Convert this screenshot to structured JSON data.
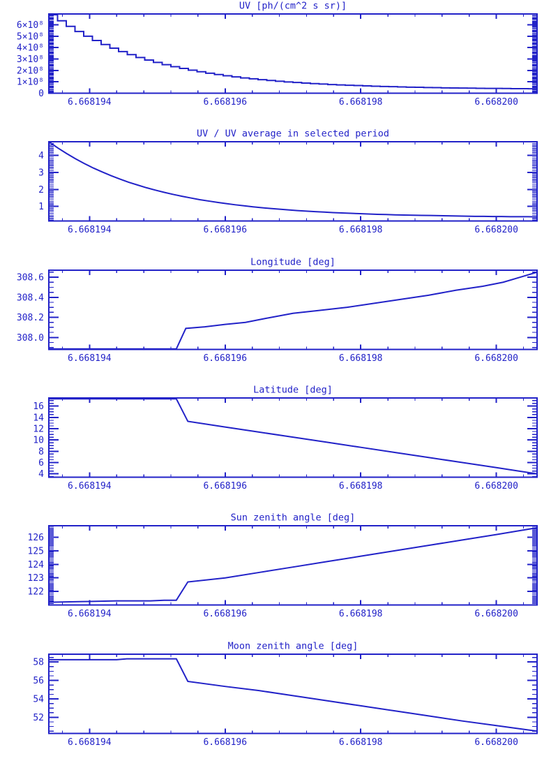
{
  "page": {
    "background": "#ffffff",
    "accent_color": "#2222c8"
  },
  "chart_data": [
    {
      "type": "line",
      "mode": "steps",
      "title": "UV [ph/(cm^2 s sr)]",
      "xlabel": "",
      "ylabel": "",
      "xlim": [
        6.6681934,
        6.6682006
      ],
      "ylim": [
        0,
        695000000
      ],
      "x_major": [
        6.668194,
        6.668196,
        6.668198,
        6.6682
      ],
      "x_labels": [
        "6.668194",
        "6.668196",
        "6.668198",
        "6.668200"
      ],
      "x_minor_step": 4e-07,
      "y_major": [
        0,
        100000000.0,
        200000000.0,
        300000000.0,
        400000000.0,
        500000000.0,
        600000000.0
      ],
      "y_labels": [
        "0",
        "1×10⁸",
        "2×10⁸",
        "3×10⁸",
        "4×10⁸",
        "5×10⁸",
        "6×10⁸"
      ],
      "y_minor_step": 10000000.0,
      "series": {
        "x_start": 6.6681934,
        "x_step": 1.2857e-07,
        "values": [
          688000000.0,
          635000000.0,
          586000000.0,
          541000000.0,
          500000000.0,
          462000000.0,
          427000000.0,
          395000000.0,
          365000000.0,
          338000000.0,
          313000000.0,
          291000000.0,
          270000000.0,
          250000000.0,
          233000000.0,
          217000000.0,
          202000000.0,
          188000000.0,
          175000000.0,
          164000000.0,
          153000000.0,
          143000000.0,
          134000000.0,
          126000000.0,
          119000000.0,
          112000000.0,
          105000000.0,
          99000000.0,
          94000000.0,
          89000000.0,
          84000000.0,
          80000000.0,
          76000000.0,
          73000000.0,
          70000000.0,
          67000000.0,
          64000000.0,
          61000000.0,
          59000000.0,
          57000000.0,
          55000000.0,
          53000000.0,
          52000000.0,
          50000000.0,
          49000000.0,
          47000000.0,
          46000000.0,
          45000000.0,
          44000000.0,
          43000000.0,
          42000000.0,
          42000000.0,
          41000000.0,
          40000000.0,
          40000000.0,
          39000000.0
        ]
      }
    },
    {
      "type": "line",
      "mode": "line",
      "title": "UV / UV average in selected period",
      "xlabel": "",
      "ylabel": "",
      "xlim": [
        6.6681934,
        6.6682006
      ],
      "ylim": [
        0.15,
        4.8
      ],
      "x_major": [
        6.668194,
        6.668196,
        6.668198,
        6.6682
      ],
      "x_labels": [
        "6.668194",
        "6.668196",
        "6.668198",
        "6.668200"
      ],
      "x_minor_step": 4e-07,
      "y_major": [
        1,
        2,
        3,
        4
      ],
      "y_labels": [
        "1",
        "2",
        "3",
        "4"
      ],
      "y_minor_step": 0.1,
      "series": {
        "x_start": 6.6681934,
        "x_step": 1.30909e-07,
        "values": [
          4.8,
          4.44,
          4.11,
          3.8,
          3.52,
          3.26,
          3.03,
          2.81,
          2.61,
          2.42,
          2.26,
          2.1,
          1.96,
          1.83,
          1.71,
          1.6,
          1.5,
          1.4,
          1.32,
          1.24,
          1.17,
          1.1,
          1.04,
          0.98,
          0.93,
          0.88,
          0.84,
          0.8,
          0.76,
          0.73,
          0.7,
          0.67,
          0.64,
          0.62,
          0.6,
          0.58,
          0.56,
          0.54,
          0.53,
          0.51,
          0.5,
          0.49,
          0.48,
          0.47,
          0.46,
          0.45,
          0.44,
          0.43,
          0.42,
          0.42,
          0.41,
          0.41,
          0.4,
          0.4,
          0.4,
          0.39
        ]
      }
    },
    {
      "type": "line",
      "mode": "line",
      "title": "Longitude [deg]",
      "xlabel": "",
      "ylabel": "",
      "xlim": [
        6.6681934,
        6.6682006
      ],
      "ylim": [
        307.88,
        308.67
      ],
      "x_major": [
        6.668194,
        6.668196,
        6.668198,
        6.6682
      ],
      "x_labels": [
        "6.668194",
        "6.668196",
        "6.668198",
        "6.668200"
      ],
      "x_minor_step": 4e-07,
      "y_major": [
        308.0,
        308.2,
        308.4,
        308.6
      ],
      "y_labels": [
        "308.0",
        "308.2",
        "308.4",
        "308.6"
      ],
      "y_minor_step": 0.05,
      "series": {
        "points": [
          [
            6.6681934,
            307.885
          ],
          [
            6.66819528,
            307.885
          ],
          [
            6.66819542,
            308.09
          ],
          [
            6.6681957,
            308.105
          ],
          [
            6.668196,
            308.13
          ],
          [
            6.6681963,
            308.15
          ],
          [
            6.6681966,
            308.19
          ],
          [
            6.668197,
            308.24
          ],
          [
            6.6681974,
            308.27
          ],
          [
            6.6681978,
            308.3
          ],
          [
            6.6681982,
            308.34
          ],
          [
            6.6681986,
            308.38
          ],
          [
            6.668199,
            308.42
          ],
          [
            6.6681994,
            308.47
          ],
          [
            6.6681998,
            308.51
          ],
          [
            6.6682001,
            308.55
          ],
          [
            6.66820035,
            308.6
          ],
          [
            6.6682006,
            308.65
          ]
        ]
      }
    },
    {
      "type": "line",
      "mode": "line",
      "title": "Latitude [deg]",
      "xlabel": "",
      "ylabel": "",
      "xlim": [
        6.6681934,
        6.6682006
      ],
      "ylim": [
        3.4,
        17.45
      ],
      "x_major": [
        6.668194,
        6.668196,
        6.668198,
        6.6682
      ],
      "x_labels": [
        "6.668194",
        "6.668196",
        "6.668198",
        "6.668200"
      ],
      "x_minor_step": 4e-07,
      "y_major": [
        4,
        6,
        8,
        10,
        12,
        14,
        16
      ],
      "y_labels": [
        "4",
        "6",
        "8",
        "10",
        "12",
        "14",
        "16"
      ],
      "y_minor_step": 0.5,
      "series": {
        "points": [
          [
            6.6681934,
            17.3
          ],
          [
            6.66819528,
            17.3
          ],
          [
            6.66819545,
            13.3
          ],
          [
            6.668196,
            12.3
          ],
          [
            6.6681965,
            11.4
          ],
          [
            6.668197,
            10.5
          ],
          [
            6.6681975,
            9.6
          ],
          [
            6.668198,
            8.7
          ],
          [
            6.6681985,
            7.8
          ],
          [
            6.668199,
            6.9
          ],
          [
            6.6681995,
            6.0
          ],
          [
            6.6682,
            5.1
          ],
          [
            6.6682003,
            4.55
          ],
          [
            6.6682006,
            4.0
          ]
        ]
      }
    },
    {
      "type": "line",
      "mode": "line",
      "title": "Sun zenith angle [deg]",
      "xlabel": "",
      "ylabel": "",
      "xlim": [
        6.6681934,
        6.6682006
      ],
      "ylim": [
        121.0,
        126.85
      ],
      "x_major": [
        6.668194,
        6.668196,
        6.668198,
        6.6682
      ],
      "x_labels": [
        "6.668194",
        "6.668196",
        "6.668198",
        "6.668200"
      ],
      "x_minor_step": 4e-07,
      "y_major": [
        122,
        123,
        124,
        125,
        126
      ],
      "y_labels": [
        "122",
        "123",
        "124",
        "125",
        "126"
      ],
      "y_minor_step": 0.1,
      "series": {
        "points": [
          [
            6.6681934,
            121.2
          ],
          [
            6.6681939,
            121.25
          ],
          [
            6.6681944,
            121.3
          ],
          [
            6.6681949,
            121.3
          ],
          [
            6.6681951,
            121.35
          ],
          [
            6.66819528,
            121.35
          ],
          [
            6.66819545,
            122.7
          ],
          [
            6.668196,
            123.0
          ],
          [
            6.6681965,
            123.4
          ],
          [
            6.668197,
            123.8
          ],
          [
            6.6681975,
            124.2
          ],
          [
            6.668198,
            124.6
          ],
          [
            6.6681985,
            125.0
          ],
          [
            6.668199,
            125.4
          ],
          [
            6.6681995,
            125.8
          ],
          [
            6.6682,
            126.2
          ],
          [
            6.6682003,
            126.45
          ],
          [
            6.6682006,
            126.7
          ]
        ]
      }
    },
    {
      "type": "line",
      "mode": "line",
      "title": "Moon zenith angle [deg]",
      "xlabel": "",
      "ylabel": "",
      "xlim": [
        6.6681934,
        6.6682006
      ],
      "ylim": [
        50.25,
        58.85
      ],
      "x_major": [
        6.668194,
        6.668196,
        6.668198,
        6.6682
      ],
      "x_labels": [
        "6.668194",
        "6.668196",
        "6.668198",
        "6.668200"
      ],
      "x_minor_step": 4e-07,
      "y_major": [
        52,
        54,
        56,
        58
      ],
      "y_labels": [
        "52",
        "54",
        "56",
        "58"
      ],
      "y_minor_step": 0.5,
      "series": {
        "points": [
          [
            6.6681934,
            58.25
          ],
          [
            6.6681944,
            58.25
          ],
          [
            6.66819455,
            58.35
          ],
          [
            6.66819528,
            58.35
          ],
          [
            6.66819545,
            55.9
          ],
          [
            6.668196,
            55.35
          ],
          [
            6.6681965,
            54.9
          ],
          [
            6.668197,
            54.35
          ],
          [
            6.6681975,
            53.8
          ],
          [
            6.668198,
            53.25
          ],
          [
            6.6681985,
            52.7
          ],
          [
            6.668199,
            52.15
          ],
          [
            6.6681995,
            51.6
          ],
          [
            6.6682,
            51.1
          ],
          [
            6.6682003,
            50.8
          ],
          [
            6.6682006,
            50.5
          ]
        ]
      }
    }
  ]
}
